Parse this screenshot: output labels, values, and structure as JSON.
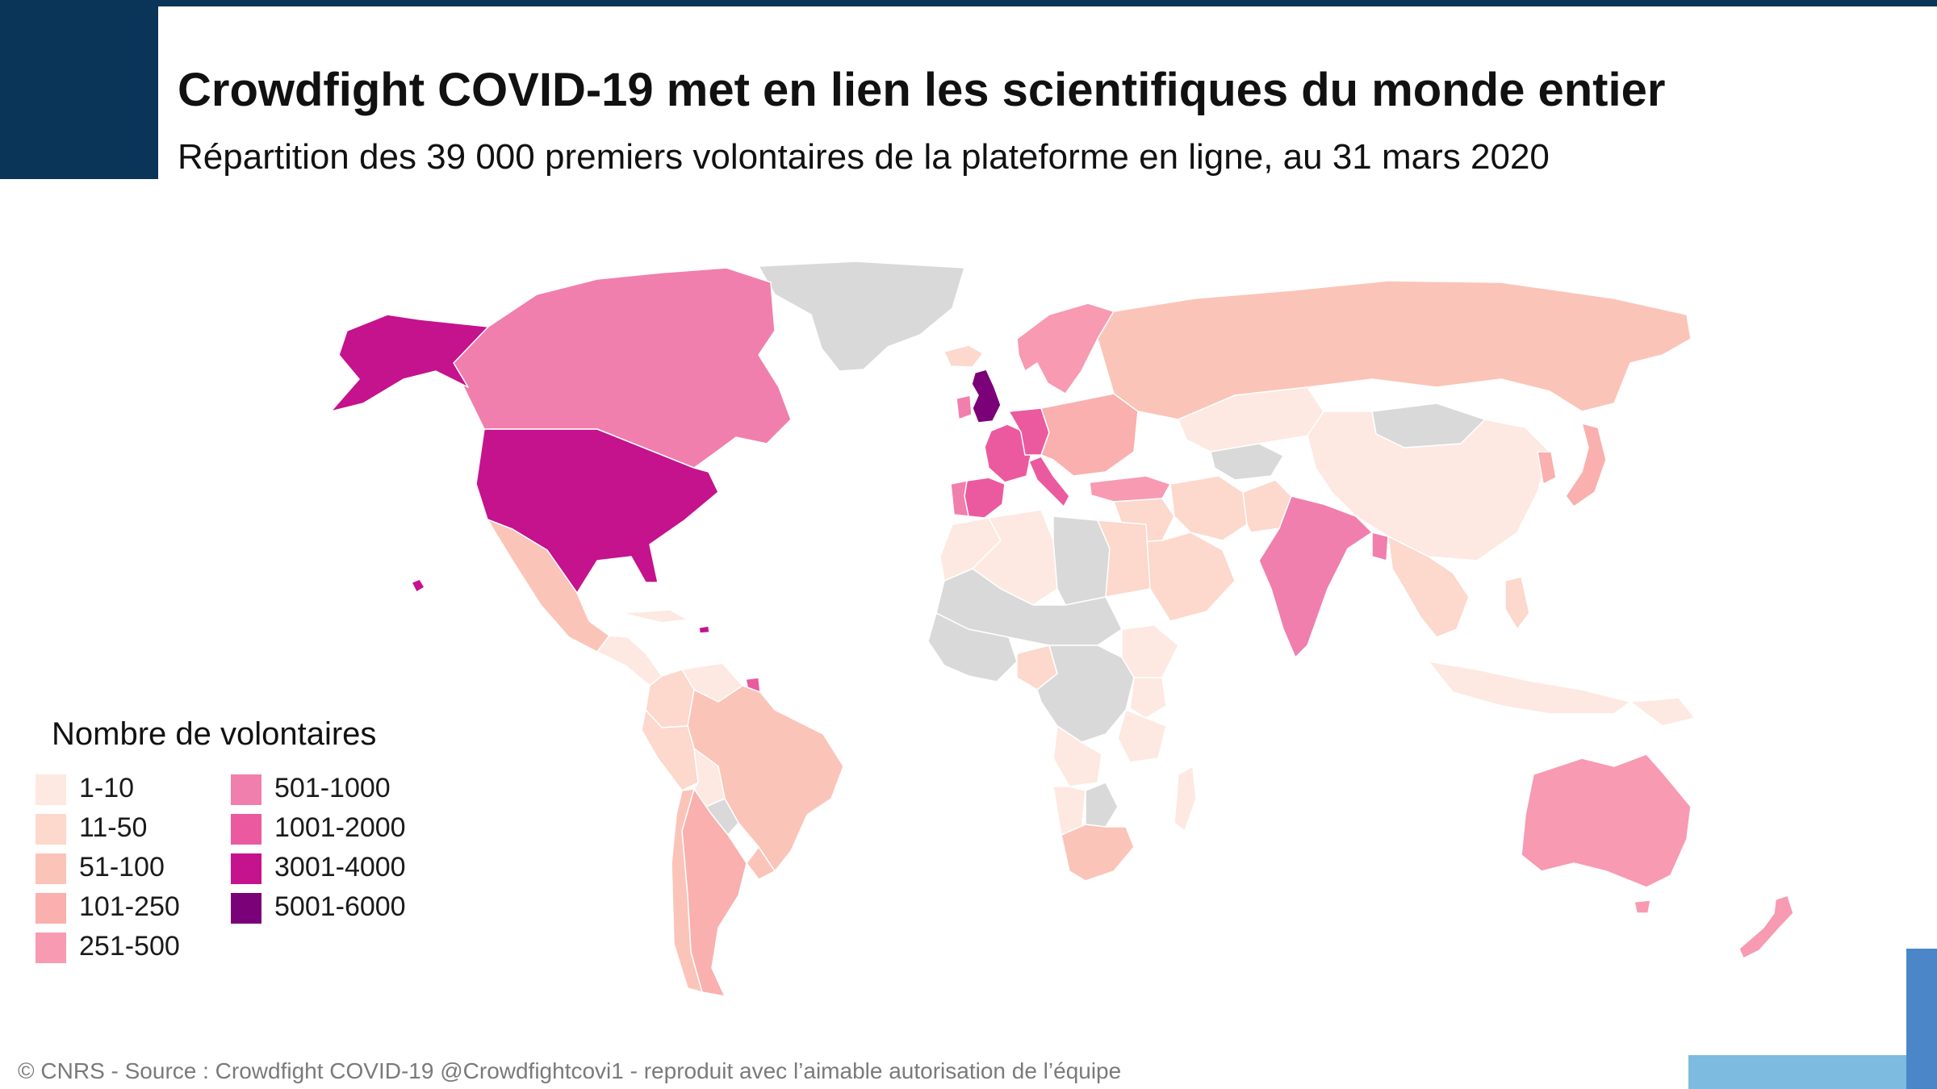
{
  "header": {
    "title": "Crowdfight COVID-19 met en lien les scientifiques du monde entier",
    "subtitle": "Répartition des 39 000 premiers volontaires de la plateforme en ligne, au 31 mars 2020"
  },
  "legend": {
    "title": "Nombre de volontaires",
    "column1": [
      {
        "label": "1-10",
        "color": "#fde9e1"
      },
      {
        "label": "11-50",
        "color": "#fcd8cd"
      },
      {
        "label": "51-100",
        "color": "#fbc4b8"
      },
      {
        "label": "101-250",
        "color": "#f9b0ae"
      },
      {
        "label": "251-500",
        "color": "#f79ab2"
      }
    ],
    "column2": [
      {
        "label": "501-1000",
        "color": "#f07fad"
      },
      {
        "label": "1001-2000",
        "color": "#eb5a9e"
      },
      {
        "label": "3001-4000",
        "color": "#c5128d"
      },
      {
        "label": "5001-6000",
        "color": "#7a0177"
      }
    ]
  },
  "map": {
    "no_data_color": "#d9d9d9",
    "regions": [
      {
        "name": "Greenland",
        "color": "#d9d9d9"
      },
      {
        "name": "Canada",
        "color": "#f07fad"
      },
      {
        "name": "Alaska",
        "color": "#c5128d"
      },
      {
        "name": "United States",
        "color": "#c5128d"
      },
      {
        "name": "Mexico",
        "color": "#fbc4b8"
      },
      {
        "name": "Central America",
        "color": "#fde9e1"
      },
      {
        "name": "Colombia",
        "color": "#fcd8cd"
      },
      {
        "name": "Venezuela",
        "color": "#fde9e1"
      },
      {
        "name": "Peru",
        "color": "#fcd8cd"
      },
      {
        "name": "Brazil",
        "color": "#fbc4b8"
      },
      {
        "name": "Bolivia",
        "color": "#fde9e1"
      },
      {
        "name": "Paraguay",
        "color": "#d9d9d9"
      },
      {
        "name": "Argentina",
        "color": "#f9b0ae"
      },
      {
        "name": "Chile",
        "color": "#fbc4b8"
      },
      {
        "name": "Uruguay",
        "color": "#fbc4b8"
      },
      {
        "name": "United Kingdom",
        "color": "#7a0177"
      },
      {
        "name": "Ireland",
        "color": "#f07fad"
      },
      {
        "name": "France",
        "color": "#eb5a9e"
      },
      {
        "name": "Spain",
        "color": "#eb5a9e"
      },
      {
        "name": "Portugal",
        "color": "#f07fad"
      },
      {
        "name": "Germany",
        "color": "#eb5a9e"
      },
      {
        "name": "Italy",
        "color": "#eb5a9e"
      },
      {
        "name": "Scandinavia",
        "color": "#f79ab2"
      },
      {
        "name": "Eastern Europe",
        "color": "#f9b0ae"
      },
      {
        "name": "Turkey",
        "color": "#f79ab2"
      },
      {
        "name": "Russia",
        "color": "#fbc4b8"
      },
      {
        "name": "Kazakhstan",
        "color": "#fde9e1"
      },
      {
        "name": "Central Asia",
        "color": "#d9d9d9"
      },
      {
        "name": "Mongolia",
        "color": "#d9d9d9"
      },
      {
        "name": "China",
        "color": "#fde9e1"
      },
      {
        "name": "Japan",
        "color": "#f9b0ae"
      },
      {
        "name": "Korea",
        "color": "#f9b0ae"
      },
      {
        "name": "Middle East",
        "color": "#fcd8cd"
      },
      {
        "name": "Saudi Arabia",
        "color": "#fcd8cd"
      },
      {
        "name": "Iran",
        "color": "#fcd8cd"
      },
      {
        "name": "Pakistan",
        "color": "#fcd8cd"
      },
      {
        "name": "India",
        "color": "#f07fad"
      },
      {
        "name": "Bangladesh",
        "color": "#f07fad"
      },
      {
        "name": "Southeast Asia",
        "color": "#fcd8cd"
      },
      {
        "name": "Indonesia",
        "color": "#fde9e1"
      },
      {
        "name": "Philippines",
        "color": "#fcd8cd"
      },
      {
        "name": "Papua New Guinea",
        "color": "#fde9e1"
      },
      {
        "name": "Morocco",
        "color": "#fde9e1"
      },
      {
        "name": "Algeria",
        "color": "#fde9e1"
      },
      {
        "name": "Libya",
        "color": "#d9d9d9"
      },
      {
        "name": "Egypt",
        "color": "#fcd8cd"
      },
      {
        "name": "Sahel",
        "color": "#d9d9d9"
      },
      {
        "name": "West Africa",
        "color": "#d9d9d9"
      },
      {
        "name": "Nigeria",
        "color": "#fcd8cd"
      },
      {
        "name": "Ethiopia",
        "color": "#fde9e1"
      },
      {
        "name": "Kenya",
        "color": "#fde9e1"
      },
      {
        "name": "Central Africa",
        "color": "#d9d9d9"
      },
      {
        "name": "Tanzania",
        "color": "#fde9e1"
      },
      {
        "name": "Angola",
        "color": "#fde9e1"
      },
      {
        "name": "Namibia",
        "color": "#fde9e1"
      },
      {
        "name": "Botswana",
        "color": "#d9d9d9"
      },
      {
        "name": "South Africa",
        "color": "#fbc4b8"
      },
      {
        "name": "Madagascar",
        "color": "#fde9e1"
      },
      {
        "name": "Australia",
        "color": "#f79ab2"
      },
      {
        "name": "New Zealand",
        "color": "#f79ab2"
      },
      {
        "name": "Iceland",
        "color": "#fcd8cd"
      },
      {
        "name": "Cuba",
        "color": "#fde9e1"
      },
      {
        "name": "Puerto Rico",
        "color": "#c5128d"
      },
      {
        "name": "French Guiana",
        "color": "#eb5a9e"
      },
      {
        "name": "Hawaii",
        "color": "#c5128d"
      }
    ]
  },
  "footer": {
    "credit": "© CNRS - Source : Crowdfight COVID-19 @Crowdfightcovi1 - reproduit avec l’aimable autorisation de l’équipe"
  }
}
